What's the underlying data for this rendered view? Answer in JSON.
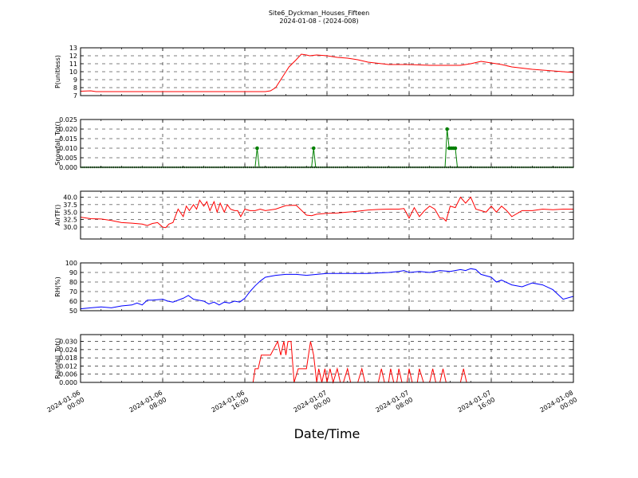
{
  "header": {
    "title": "Site6_Dyckman_Houses_Fifteen",
    "subtitle": "2024-01-08 - (2024-008)"
  },
  "x_axis": {
    "label": "Date/Time",
    "tick_lines": [
      [
        "2024-01-06",
        "00:00"
      ],
      [
        "2024-01-06",
        "08:00"
      ],
      [
        "2024-01-06",
        "16:00"
      ],
      [
        "2024-01-07",
        "00:00"
      ],
      [
        "2024-01-07",
        "08:00"
      ],
      [
        "2024-01-07",
        "16:00"
      ],
      [
        "2024-01-08",
        "00:00"
      ]
    ]
  },
  "chart_data": [
    {
      "type": "line",
      "ylabel": "P(unitless)",
      "ylim": [
        7,
        13
      ],
      "yticks": [
        "7",
        "8",
        "9",
        "10",
        "11",
        "12",
        "13"
      ],
      "grid": true,
      "x_unit": "hours since 2024-01-06 00:00",
      "xlim": [
        0,
        48
      ],
      "series": [
        {
          "color": "#ff0000",
          "marker": false,
          "x": [
            0,
            1,
            1.5,
            3,
            6,
            10,
            14,
            16,
            17,
            18,
            18.5,
            19,
            19.5,
            20,
            20.3,
            21,
            21.5,
            22,
            22.3,
            23,
            24,
            25,
            26,
            27,
            28,
            30,
            32,
            34,
            36,
            37,
            38,
            39,
            40,
            41,
            42,
            44,
            46,
            48
          ],
          "y": [
            7.55,
            7.6,
            7.5,
            7.5,
            7.5,
            7.5,
            7.5,
            7.5,
            7.5,
            7.5,
            7.6,
            8.0,
            9.0,
            10.0,
            10.6,
            11.5,
            12.2,
            12.1,
            12.0,
            12.1,
            12.0,
            11.8,
            11.7,
            11.5,
            11.2,
            10.9,
            10.9,
            10.8,
            10.8,
            10.8,
            11.0,
            11.3,
            11.1,
            10.9,
            10.6,
            10.3,
            10.1,
            9.9
          ]
        }
      ]
    },
    {
      "type": "line",
      "ylabel": "Snowfall_Tot()",
      "ylim": [
        0,
        0.025
      ],
      "yticks": [
        "0.000",
        "0.005",
        "0.010",
        "0.015",
        "0.020",
        "0.025"
      ],
      "grid": true,
      "x_unit": "hours since 2024-01-06 00:00",
      "xlim": [
        0,
        48
      ],
      "series": [
        {
          "color": "#008000",
          "marker": true,
          "x": [
            0,
            17,
            17.2,
            17.4,
            22.5,
            22.7,
            22.9,
            35.5,
            35.7,
            35.9,
            36.1,
            36.3,
            36.5,
            36.7,
            48
          ],
          "y": [
            0,
            0,
            0.01,
            0,
            0,
            0.01,
            0,
            0,
            0.02,
            0.01,
            0.01,
            0.01,
            0.01,
            0,
            0
          ]
        }
      ]
    },
    {
      "type": "line",
      "ylabel": "AirTF()",
      "ylim": [
        26,
        42
      ],
      "yticks": [
        "30.0",
        "32.5",
        "35.0",
        "37.5",
        "40.0"
      ],
      "grid": true,
      "x_unit": "hours since 2024-01-06 00:00",
      "xlim": [
        0,
        48
      ],
      "series": [
        {
          "color": "#ff0000",
          "marker": false,
          "x": [
            0,
            1,
            2,
            3,
            4,
            5,
            6,
            6.5,
            7,
            7.5,
            8,
            8.3,
            8.6,
            9,
            9.5,
            10,
            10.3,
            10.6,
            11,
            11.3,
            11.6,
            12,
            12.3,
            12.6,
            13,
            13.3,
            13.6,
            14,
            14.3,
            14.6,
            15,
            15.3,
            15.6,
            16,
            16.5,
            17,
            17.5,
            18,
            19,
            20,
            21,
            22,
            22.5,
            23,
            24,
            25,
            26,
            27,
            28,
            29,
            30,
            31,
            31.5,
            32,
            32.5,
            33,
            33.5,
            34,
            34.5,
            35,
            35.3,
            35.6,
            36,
            36.5,
            37,
            37.5,
            38,
            38.5,
            39,
            39.5,
            40,
            40.5,
            41,
            41.5,
            42,
            43,
            44,
            45,
            46,
            47,
            48
          ],
          "y": [
            33.3,
            32.8,
            32.7,
            32.2,
            31.5,
            31.3,
            31.0,
            30.5,
            31.2,
            31.5,
            30.0,
            29.8,
            31.0,
            31.5,
            36.0,
            33.5,
            37.0,
            35.5,
            37.5,
            36.0,
            39.0,
            37.0,
            38.5,
            35.5,
            38.5,
            35.0,
            38.0,
            35.0,
            37.5,
            36.0,
            35.5,
            35.5,
            33.5,
            36.0,
            35.5,
            35.5,
            36.0,
            35.5,
            36.0,
            37.2,
            37.3,
            34.0,
            33.8,
            34.3,
            34.6,
            34.7,
            35.0,
            35.3,
            35.7,
            35.9,
            36.0,
            36.0,
            36.2,
            33.0,
            36.5,
            33.5,
            35.5,
            37.0,
            36.0,
            33.0,
            33.0,
            32.0,
            37.0,
            36.5,
            40.0,
            38.0,
            40.0,
            36.0,
            35.5,
            35.0,
            37.0,
            35.0,
            37.0,
            35.5,
            33.5,
            35.5,
            35.5,
            36.0,
            35.8,
            36.0,
            36.0
          ]
        }
      ]
    },
    {
      "type": "line",
      "ylabel": "RH(%)",
      "ylim": [
        50,
        100
      ],
      "yticks": [
        "50",
        "60",
        "70",
        "80",
        "90",
        "100"
      ],
      "grid": true,
      "x_unit": "hours since 2024-01-06 00:00",
      "xlim": [
        0,
        48
      ],
      "series": [
        {
          "color": "#0000ff",
          "marker": false,
          "x": [
            0,
            1,
            2,
            3,
            4,
            5,
            5.5,
            6,
            6.5,
            7,
            8,
            8.5,
            9,
            10,
            10.5,
            11,
            12,
            12.5,
            13,
            13.5,
            14,
            14.5,
            15,
            15.5,
            16,
            16.5,
            17,
            17.5,
            18,
            19,
            20,
            21,
            22,
            23,
            24,
            26,
            28,
            30,
            31,
            31.5,
            32,
            33,
            34,
            35,
            36,
            37,
            37.5,
            38,
            38.5,
            39,
            40,
            40.5,
            41,
            42,
            43,
            44,
            45,
            46,
            46.5,
            47,
            48
          ],
          "y": [
            52,
            53,
            54,
            53,
            55,
            56,
            58,
            56,
            61,
            61,
            62,
            60,
            59,
            63,
            66,
            62,
            60,
            57,
            59,
            56,
            59,
            58,
            60,
            59,
            63,
            70,
            76,
            81,
            85,
            87,
            88,
            88,
            87,
            88,
            89,
            89,
            89,
            90,
            91,
            92,
            90,
            91,
            90,
            92,
            91,
            93,
            92,
            94,
            93,
            88,
            85,
            80,
            82,
            77,
            75,
            79,
            77,
            72,
            67,
            62,
            65
          ]
        }
      ]
    },
    {
      "type": "line",
      "ylabel": "Rainfall_Tot()",
      "ylim": [
        0,
        0.035
      ],
      "yticks": [
        "0.000",
        "0.006",
        "0.012",
        "0.018",
        "0.024",
        "0.030"
      ],
      "grid": true,
      "x_unit": "hours since 2024-01-06 00:00",
      "xlim": [
        0,
        48
      ],
      "series": [
        {
          "color": "#ff0000",
          "marker": false,
          "x": [
            0,
            16.8,
            17.0,
            17.3,
            17.6,
            18.5,
            19.2,
            19.5,
            19.8,
            20.0,
            20.2,
            20.5,
            20.8,
            21.2,
            21.5,
            22.0,
            22.4,
            22.7,
            23.0,
            23.2,
            23.5,
            23.8,
            24.0,
            24.3,
            24.6,
            25.0,
            25.3,
            25.6,
            26.0,
            26.3,
            26.6,
            27.0,
            27.4,
            27.7,
            28.0,
            29.0,
            29.3,
            29.6,
            30.0,
            30.2,
            30.5,
            30.8,
            31.0,
            31.3,
            31.6,
            31.8,
            32.0,
            32.3,
            32.6,
            32.8,
            33.0,
            33.4,
            33.7,
            34.0,
            34.3,
            34.6,
            35.0,
            35.3,
            35.6,
            37.0,
            37.3,
            37.6,
            48
          ],
          "y": [
            0,
            0,
            0.01,
            0.01,
            0.02,
            0.02,
            0.03,
            0.02,
            0.03,
            0.02,
            0.03,
            0.03,
            0.0,
            0.01,
            0.01,
            0.01,
            0.03,
            0.02,
            0.0,
            0.01,
            0.0,
            0.01,
            0.0,
            0.01,
            0.0,
            0.01,
            0.0,
            0.0,
            0.01,
            0.0,
            0.0,
            0.0,
            0.01,
            0.0,
            0.0,
            0.0,
            0.01,
            0.0,
            0.0,
            0.01,
            0.0,
            0.0,
            0.01,
            0.0,
            0.0,
            0.0,
            0.01,
            0.0,
            0.0,
            0.0,
            0.01,
            0.0,
            0.0,
            0.0,
            0.01,
            0.0,
            0.0,
            0.01,
            0.0,
            0.0,
            0.01,
            0.0,
            0
          ]
        }
      ]
    }
  ]
}
